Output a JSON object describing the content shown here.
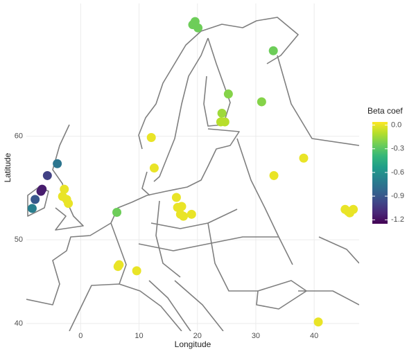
{
  "chart_data": {
    "type": "scatter",
    "projection": "mercator",
    "x_label": "Longitude",
    "y_label": "Latitude",
    "legend_title": "Beta coef",
    "colormap": "viridis",
    "x": [
      19.2,
      20.1,
      19.6,
      33.0,
      25.3,
      31.0,
      24.2,
      24.0,
      24.7,
      12.1,
      12.6,
      33.1,
      38.2,
      -4.0,
      -5.7,
      -6.6,
      -6.8,
      -7.8,
      -8.3,
      -2.8,
      -3.1,
      -2.4,
      -2.1,
      6.2,
      16.4,
      17.3,
      16.6,
      17.1,
      17.6,
      19.0,
      45.3,
      46.1,
      46.7,
      45.8,
      6.6,
      6.4,
      9.6,
      40.7
    ],
    "y": [
      68.2,
      68.0,
      68.4,
      66.5,
      63.4,
      62.8,
      61.9,
      61.2,
      61.2,
      59.9,
      57.2,
      56.5,
      58.1,
      57.6,
      56.5,
      55.2,
      55.0,
      54.2,
      53.3,
      55.2,
      54.5,
      54.2,
      53.8,
      52.9,
      54.4,
      53.5,
      53.4,
      52.7,
      52.5,
      52.7,
      53.2,
      52.85,
      53.2,
      53.0,
      47.2,
      47.0,
      46.5,
      40.2
    ],
    "color_values": [
      -0.25,
      -0.25,
      -0.25,
      -0.25,
      -0.2,
      -0.2,
      -0.15,
      -0.1,
      -0.1,
      0,
      0,
      0,
      0,
      -0.75,
      -1.0,
      -1.15,
      -1.15,
      -0.9,
      -0.7,
      0,
      0,
      0,
      0,
      -0.25,
      0,
      0,
      0,
      0,
      0,
      0,
      0,
      0,
      0,
      0,
      0,
      0,
      0,
      0
    ],
    "xlim": [
      -9.3,
      47.7
    ],
    "ylim": [
      39.0,
      69.5
    ],
    "xticks": [
      0,
      10,
      20,
      30,
      40
    ],
    "yticks": [
      40,
      50,
      60
    ],
    "clim": [
      -1.25,
      0.04
    ],
    "cticks": [
      {
        "value": 0,
        "label": "0.0"
      },
      -0.3,
      -0.6,
      -0.9,
      -1.2
    ],
    "grid": true
  }
}
